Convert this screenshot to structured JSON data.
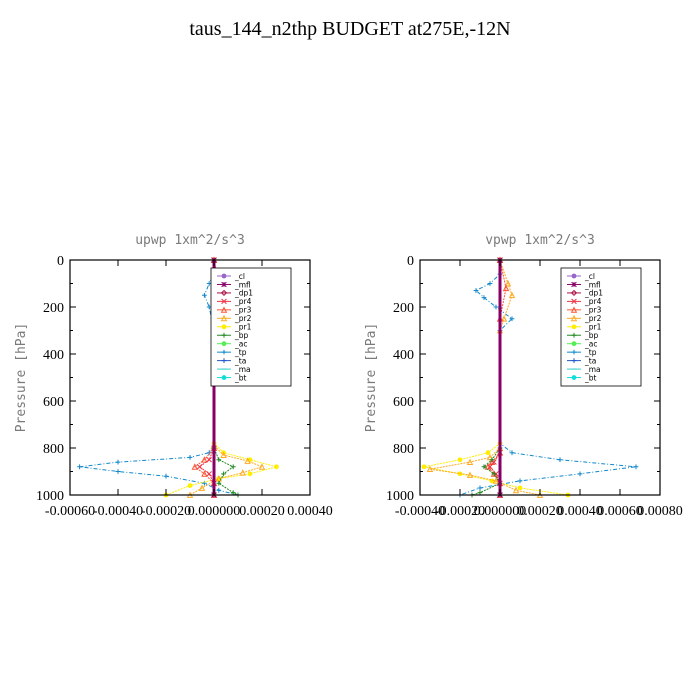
{
  "title": "taus_144_n2thp  BUDGET at275E,-12N",
  "legend_entries": [
    {
      "name": "_cl",
      "color": "#9966cc",
      "marker": "circle"
    },
    {
      "name": "_mfl",
      "color": "#880066",
      "marker": "star"
    },
    {
      "name": "_dp1",
      "color": "#aa1144",
      "marker": "diamond"
    },
    {
      "name": "_pr4",
      "color": "#ee3344",
      "marker": "x"
    },
    {
      "name": "_pr3",
      "color": "#ff5533",
      "marker": "triangle"
    },
    {
      "name": "_pr2",
      "color": "#ffaa22",
      "marker": "triangle"
    },
    {
      "name": "_pr1",
      "color": "#ffee00",
      "marker": "circle"
    },
    {
      "name": "_bp",
      "color": "#228822",
      "marker": "plus"
    },
    {
      "name": "_ac",
      "color": "#55ee55",
      "marker": "circle"
    },
    {
      "name": "_tp",
      "color": "#1188cc",
      "marker": "plus"
    },
    {
      "name": "_ta",
      "color": "#2255cc",
      "marker": "plus"
    },
    {
      "name": "_ma",
      "color": "#33cccc",
      "marker": "dash"
    },
    {
      "name": "_bt",
      "color": "#11dddd",
      "marker": "circle"
    }
  ],
  "chart_data": [
    {
      "type": "line",
      "title": "upwp   1xm^2/s^3",
      "ylabel": "Pressure [hPa]",
      "xlabel": "",
      "xlim": [
        -0.0006,
        0.0004
      ],
      "ylim": [
        1000,
        0
      ],
      "y_inverted": true,
      "x_ticks": [
        "-0.00060",
        "-0.00040",
        "-0.00020",
        "0.000000",
        "0.00020",
        "0.00040"
      ],
      "x_tick_values": [
        -0.0006,
        -0.0004,
        -0.0002,
        0,
        0.0002,
        0.0004
      ],
      "y_ticks": [
        0,
        200,
        400,
        600,
        800,
        1000
      ],
      "legend_position": "top-right",
      "series": [
        {
          "name": "_tp",
          "points": [
            [
              0,
              0
            ],
            [
              0,
              60
            ],
            [
              -2e-05,
              100
            ],
            [
              -4e-05,
              150
            ],
            [
              -2e-05,
              200
            ],
            [
              0,
              300
            ],
            [
              0,
              780
            ],
            [
              -2e-05,
              820
            ],
            [
              -0.0001,
              840
            ],
            [
              -0.0004,
              860
            ],
            [
              -0.00056,
              880
            ],
            [
              -0.0004,
              900
            ],
            [
              -0.0002,
              920
            ],
            [
              -4e-05,
              950
            ],
            [
              2e-05,
              980
            ],
            [
              0.0001,
              1000
            ]
          ]
        },
        {
          "name": "_pr1",
          "points": [
            [
              0,
              0
            ],
            [
              0,
              780
            ],
            [
              4e-05,
              820
            ],
            [
              0.00015,
              850
            ],
            [
              0.00026,
              880
            ],
            [
              0.00015,
              910
            ],
            [
              2e-05,
              930
            ],
            [
              -0.0001,
              960
            ],
            [
              -0.0002,
              1000
            ]
          ]
        },
        {
          "name": "_pr2",
          "points": [
            [
              0,
              0
            ],
            [
              0,
              790
            ],
            [
              4e-05,
              830
            ],
            [
              0.00014,
              855
            ],
            [
              0.0002,
              880
            ],
            [
              0.00012,
              905
            ],
            [
              2e-05,
              930
            ],
            [
              -5e-05,
              970
            ],
            [
              -0.0001,
              1000
            ]
          ]
        },
        {
          "name": "_pr3",
          "points": [
            [
              0,
              0
            ],
            [
              2e-05,
              100
            ],
            [
              3e-05,
              150
            ],
            [
              0,
              250
            ],
            [
              0,
              800
            ],
            [
              -4e-05,
              850
            ],
            [
              -8e-05,
              880
            ],
            [
              -4e-05,
              910
            ],
            [
              0,
              950
            ],
            [
              0,
              1000
            ]
          ]
        },
        {
          "name": "_pr4",
          "points": [
            [
              0,
              0
            ],
            [
              0,
              800
            ],
            [
              -2e-05,
              850
            ],
            [
              -6e-05,
              880
            ],
            [
              -2e-05,
              910
            ],
            [
              0,
              950
            ],
            [
              0,
              1000
            ]
          ]
        },
        {
          "name": "_bp",
          "points": [
            [
              0,
              0
            ],
            [
              0,
              800
            ],
            [
              2e-05,
              850
            ],
            [
              8e-05,
              880
            ],
            [
              4e-05,
              910
            ],
            [
              2e-05,
              950
            ],
            [
              8e-05,
              990
            ],
            [
              0.0001,
              1000
            ]
          ]
        },
        {
          "name": "_mfl",
          "points": [
            [
              0,
              0
            ],
            [
              0,
              1000
            ]
          ]
        }
      ]
    },
    {
      "type": "line",
      "title": "vpwp   1xm^2/s^3",
      "ylabel": "Pressure [hPa]",
      "xlabel": "",
      "xlim": [
        -0.0004,
        0.0008
      ],
      "ylim": [
        1000,
        0
      ],
      "y_inverted": true,
      "x_ticks": [
        "-0.00040",
        "-0.00020",
        "0.000000",
        "0.00020",
        "0.00040",
        "0.00060",
        "0.00080"
      ],
      "x_tick_values": [
        -0.0004,
        -0.0002,
        0,
        0.0002,
        0.0004,
        0.0006,
        0.0008
      ],
      "y_ticks": [
        0,
        200,
        400,
        600,
        800,
        1000
      ],
      "legend_position": "top-right",
      "series": [
        {
          "name": "_tp",
          "points": [
            [
              0,
              0
            ],
            [
              0,
              60
            ],
            [
              -5e-05,
              100
            ],
            [
              -0.00012,
              130
            ],
            [
              -8e-05,
              160
            ],
            [
              -2e-05,
              200
            ],
            [
              6e-05,
              250
            ],
            [
              0,
              300
            ],
            [
              0,
              780
            ],
            [
              6e-05,
              820
            ],
            [
              0.0003,
              850
            ],
            [
              0.00068,
              880
            ],
            [
              0.0004,
              910
            ],
            [
              0.0001,
              940
            ],
            [
              -0.0001,
              970
            ],
            [
              -0.0002,
              1000
            ]
          ]
        },
        {
          "name": "_pr1",
          "points": [
            [
              0,
              0
            ],
            [
              0,
              780
            ],
            [
              -6e-05,
              820
            ],
            [
              -0.0002,
              850
            ],
            [
              -0.00038,
              880
            ],
            [
              -0.0002,
              910
            ],
            [
              -4e-05,
              940
            ],
            [
              0.0001,
              970
            ],
            [
              0.00034,
              1000
            ]
          ]
        },
        {
          "name": "_pr2",
          "points": [
            [
              0,
              0
            ],
            [
              4e-05,
              100
            ],
            [
              6e-05,
              150
            ],
            [
              2e-05,
              250
            ],
            [
              0,
              300
            ],
            [
              0,
              800
            ],
            [
              -5e-05,
              840
            ],
            [
              -0.00015,
              860
            ],
            [
              -0.00035,
              890
            ],
            [
              -0.00015,
              915
            ],
            [
              -2e-05,
              940
            ],
            [
              8e-05,
              980
            ],
            [
              0.0002,
              1000
            ]
          ]
        },
        {
          "name": "_pr3",
          "points": [
            [
              0,
              0
            ],
            [
              3e-05,
              120
            ],
            [
              0,
              250
            ],
            [
              0,
              820
            ],
            [
              -4e-05,
              860
            ],
            [
              -6e-05,
              880
            ],
            [
              -3e-05,
              910
            ],
            [
              0,
              950
            ],
            [
              0,
              1000
            ]
          ]
        },
        {
          "name": "_pr4",
          "points": [
            [
              0,
              0
            ],
            [
              0,
              820
            ],
            [
              -3e-05,
              860
            ],
            [
              -5e-05,
              880
            ],
            [
              -2e-05,
              910
            ],
            [
              0,
              950
            ],
            [
              0,
              1000
            ]
          ]
        },
        {
          "name": "_bp",
          "points": [
            [
              0,
              0
            ],
            [
              0,
              800
            ],
            [
              -4e-05,
              850
            ],
            [
              -8e-05,
              880
            ],
            [
              -3e-05,
              910
            ],
            [
              0,
              950
            ],
            [
              -0.0001,
              990
            ],
            [
              -0.00014,
              1000
            ]
          ]
        },
        {
          "name": "_mfl",
          "points": [
            [
              0,
              0
            ],
            [
              0,
              1000
            ]
          ]
        }
      ]
    }
  ]
}
